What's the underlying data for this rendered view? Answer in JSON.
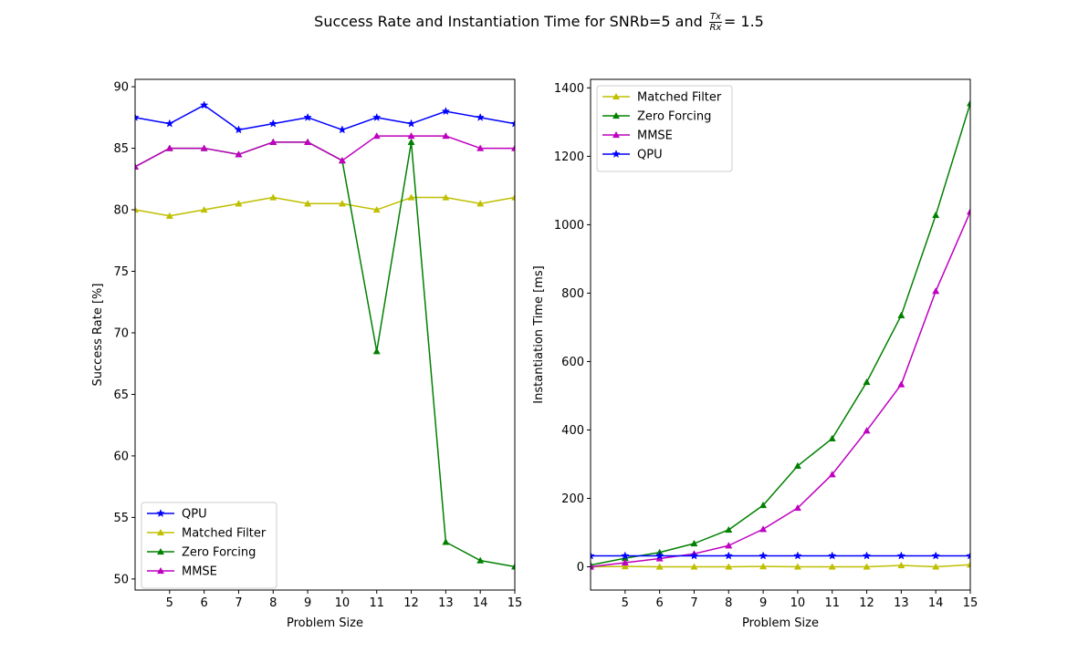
{
  "figure": {
    "title_prefix": "Success Rate and Instantiation Time for SNRb=5 and ",
    "title_frac_num": "Tx",
    "title_frac_den": "Rx",
    "title_suffix": "= 1.5"
  },
  "chart_data": [
    {
      "type": "line",
      "title": "",
      "xlabel": "Problem Size",
      "ylabel": "Success Rate [%]",
      "xlim": [
        4,
        15
      ],
      "ylim": [
        49.1,
        90.6
      ],
      "xticks": [
        5,
        6,
        7,
        8,
        9,
        10,
        11,
        12,
        13,
        14,
        15
      ],
      "yticks": [
        50,
        55,
        60,
        65,
        70,
        75,
        80,
        85,
        90
      ],
      "legend_position": "lower-left",
      "x": [
        4,
        5,
        6,
        7,
        8,
        9,
        10,
        11,
        12,
        13,
        14,
        15
      ],
      "series": [
        {
          "name": "QPU",
          "color": "#0000ff",
          "marker": "star",
          "values": [
            87.5,
            87.0,
            88.5,
            86.5,
            87.0,
            87.5,
            86.5,
            87.5,
            87.0,
            88.0,
            87.5,
            87.0
          ]
        },
        {
          "name": "Matched Filter",
          "color": "#bfbf00",
          "marker": "triangle",
          "values": [
            80.0,
            79.5,
            80.0,
            80.5,
            81.0,
            80.5,
            80.5,
            80.0,
            81.0,
            81.0,
            80.5,
            81.0
          ]
        },
        {
          "name": "Zero Forcing",
          "color": "#008000",
          "marker": "triangle",
          "values": [
            83.5,
            85.0,
            85.0,
            84.5,
            85.5,
            85.5,
            84.0,
            68.5,
            85.5,
            53.0,
            51.5,
            51.0
          ]
        },
        {
          "name": "MMSE",
          "color": "#bf00bf",
          "marker": "triangle",
          "values": [
            83.5,
            85.0,
            85.0,
            84.5,
            85.5,
            85.5,
            84.0,
            86.0,
            86.0,
            86.0,
            85.0,
            85.0
          ]
        }
      ]
    },
    {
      "type": "line",
      "title": "",
      "xlabel": "Problem Size",
      "ylabel": "Instantiation Time [ms]",
      "xlim": [
        4,
        15
      ],
      "ylim": [
        -68,
        1425
      ],
      "xticks": [
        5,
        6,
        7,
        8,
        9,
        10,
        11,
        12,
        13,
        14,
        15
      ],
      "yticks": [
        0,
        200,
        400,
        600,
        800,
        1000,
        1200,
        1400
      ],
      "legend_position": "upper-left",
      "x": [
        4,
        5,
        6,
        7,
        8,
        9,
        10,
        11,
        12,
        13,
        14,
        15
      ],
      "series": [
        {
          "name": "Matched Filter",
          "color": "#bfbf00",
          "marker": "triangle",
          "values": [
            0,
            1,
            0,
            0,
            0,
            1,
            0,
            0,
            0,
            4,
            0,
            6
          ]
        },
        {
          "name": "Zero Forcing",
          "color": "#008000",
          "marker": "triangle",
          "values": [
            5,
            25,
            42,
            68,
            108,
            180,
            295,
            375,
            540,
            735,
            1028,
            1355
          ]
        },
        {
          "name": "MMSE",
          "color": "#bf00bf",
          "marker": "triangle",
          "values": [
            0,
            12,
            24,
            38,
            62,
            110,
            172,
            270,
            398,
            533,
            806,
            1038
          ]
        },
        {
          "name": "QPU",
          "color": "#0000ff",
          "marker": "star",
          "values": [
            32,
            32,
            32,
            32,
            32,
            32,
            32,
            32,
            32,
            32,
            32,
            32
          ]
        }
      ]
    }
  ]
}
